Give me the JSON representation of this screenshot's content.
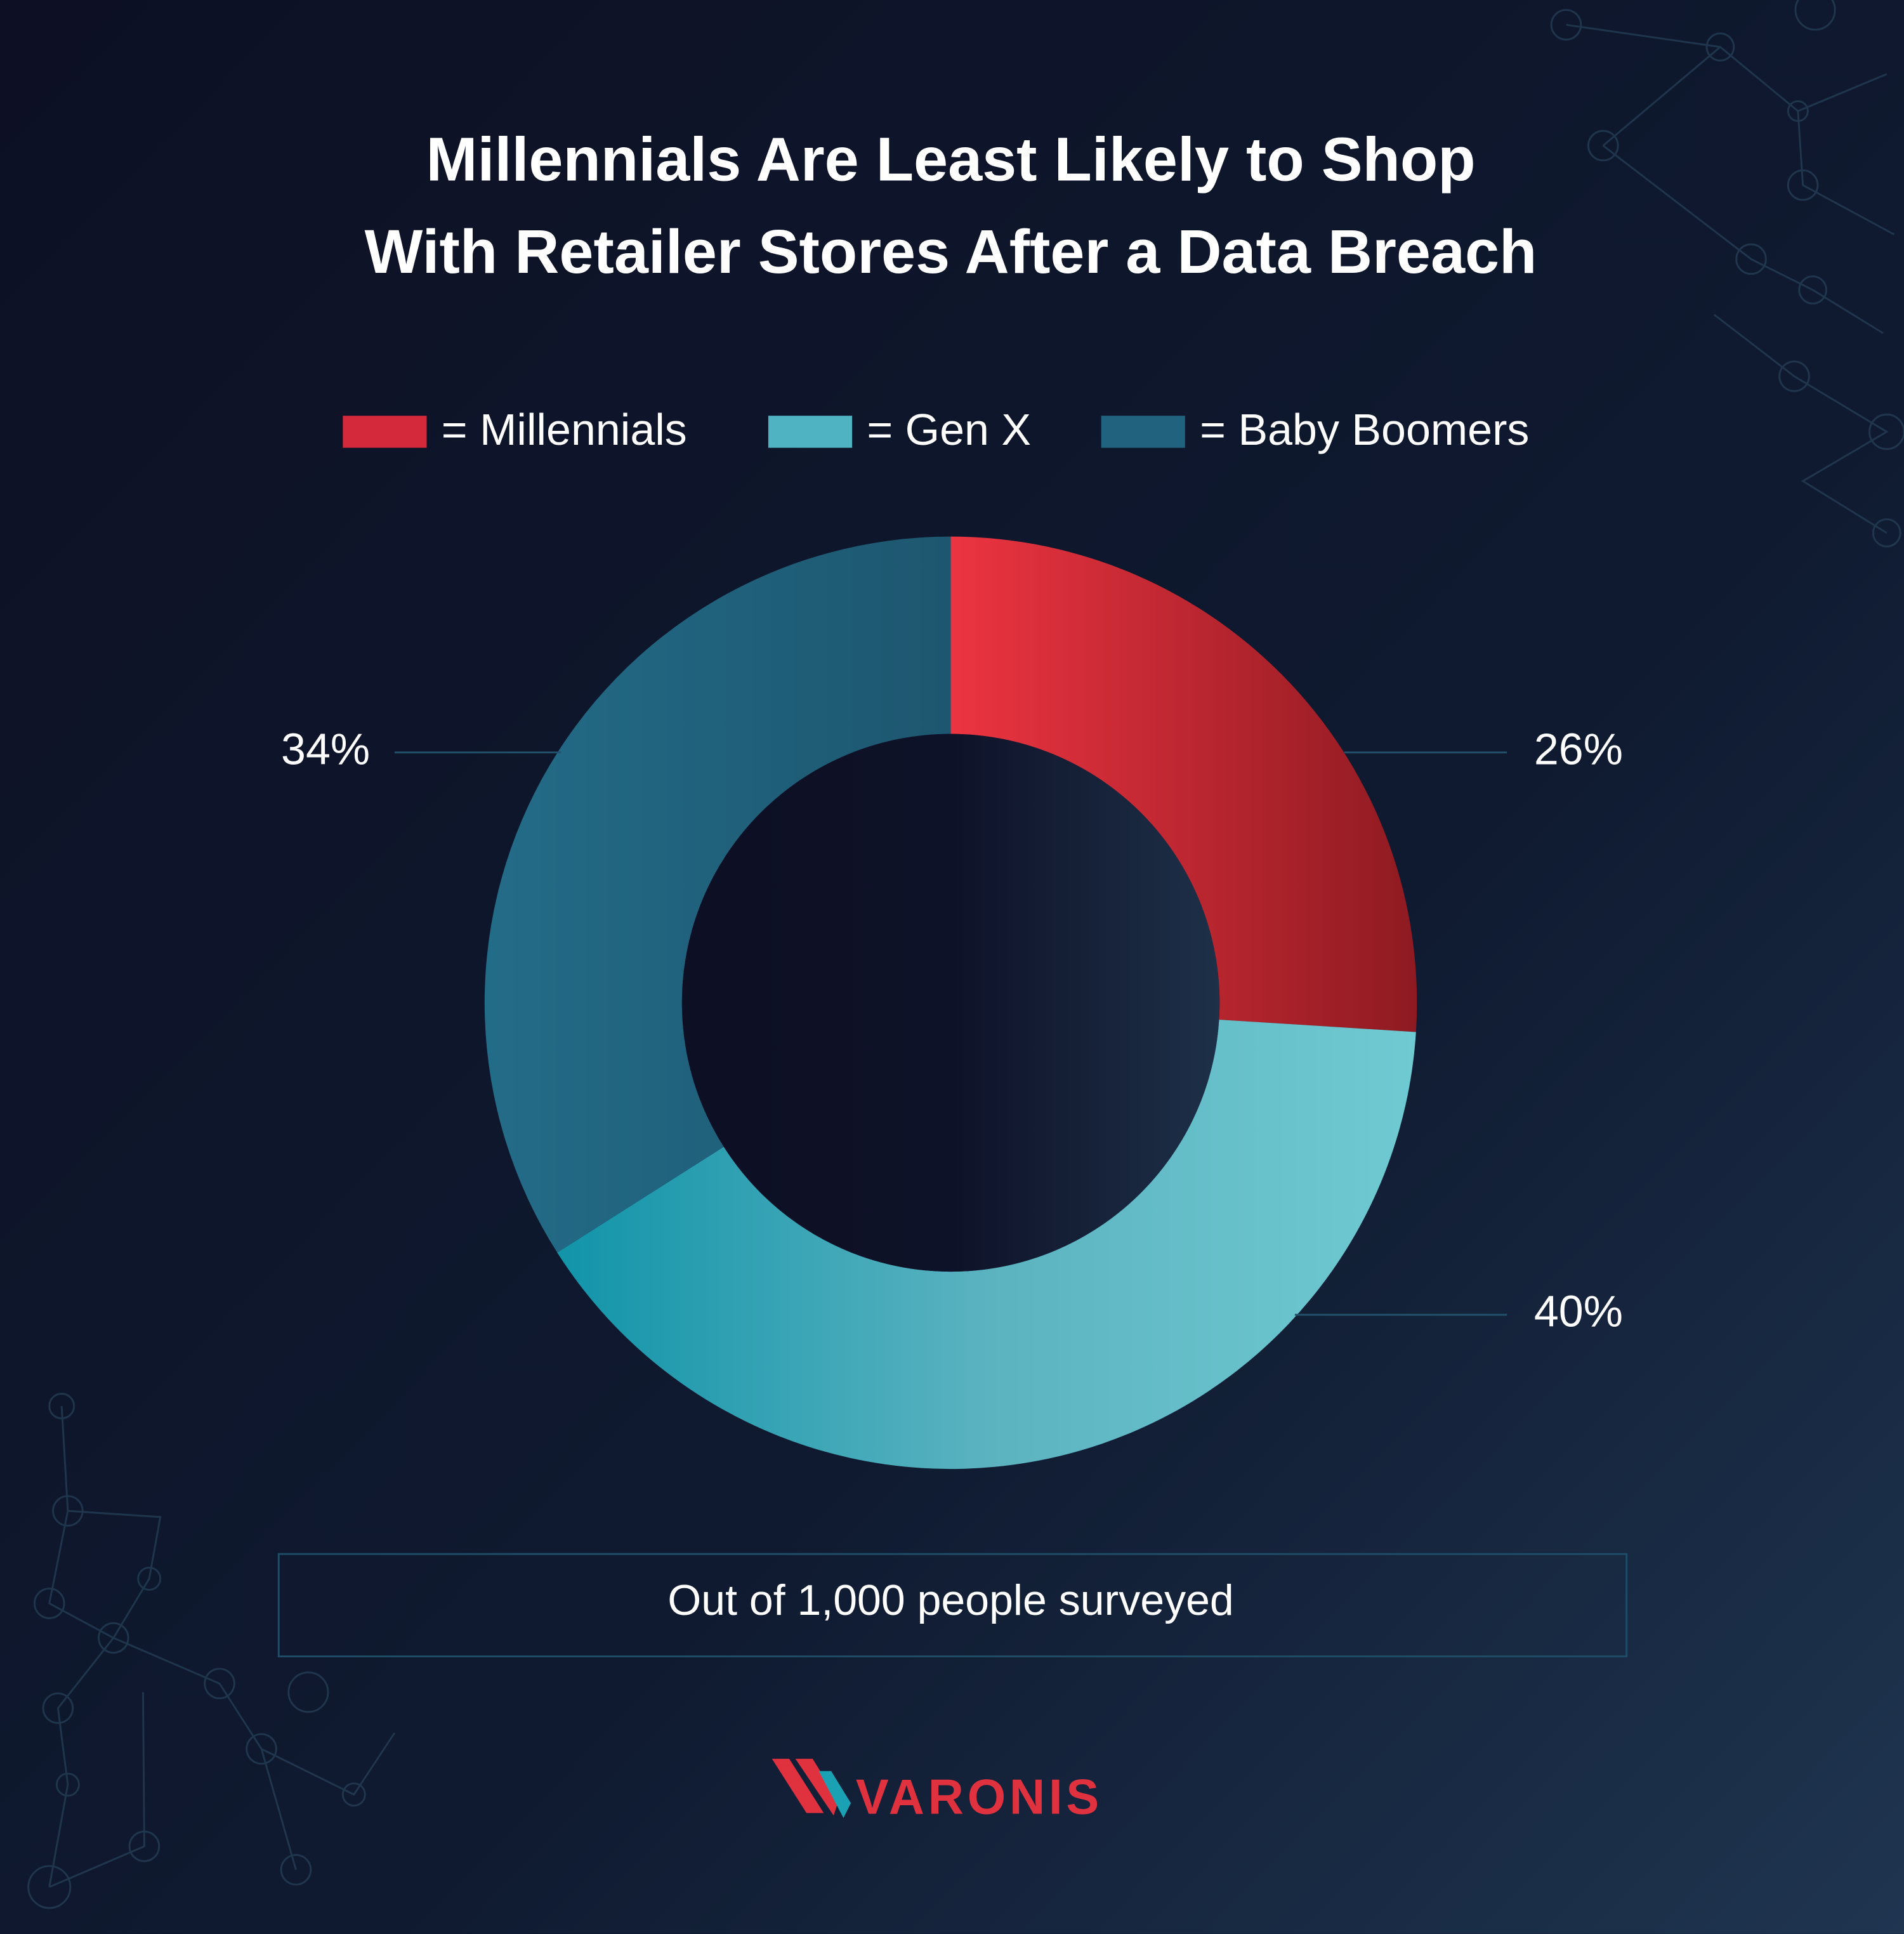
{
  "chart_data": {
    "type": "donut",
    "title": [
      "Millennials Are Least Likely to Shop",
      "With Retailer Stores After a Data Breach"
    ],
    "categories": [
      "= Millennials",
      "= Gen X",
      "= Baby Boomers"
    ],
    "values": [
      26,
      40,
      34
    ],
    "value_labels": [
      "26%",
      "40%",
      "34%"
    ],
    "colors": [
      "#d3293a",
      "#4fb3c2",
      "#21627e"
    ],
    "note": "Out of 1,000 people surveyed"
  },
  "logo": "VARONIS"
}
